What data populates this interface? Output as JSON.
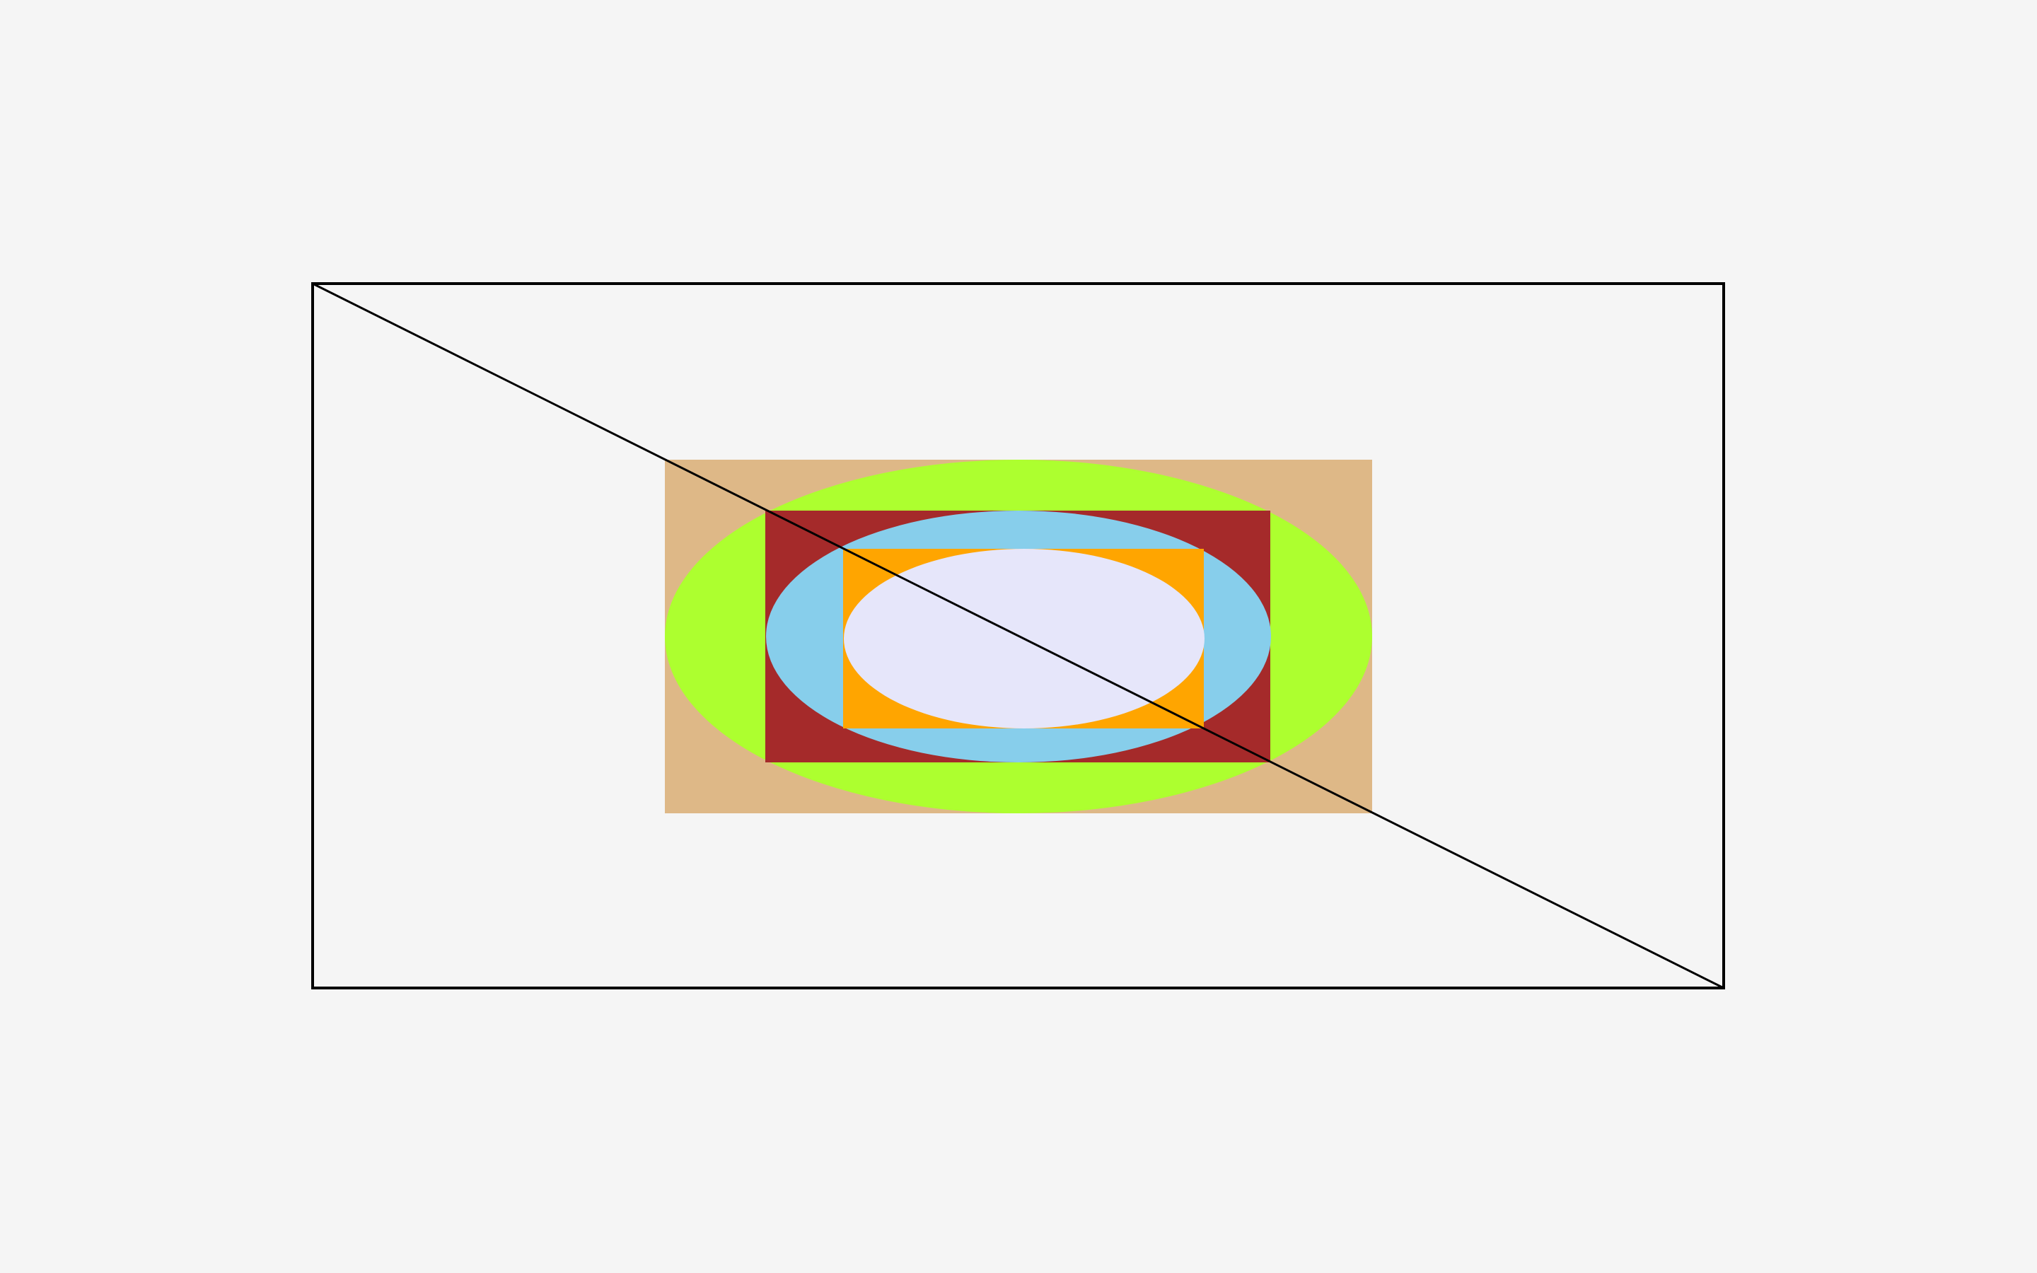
{
  "diagram": {
    "description_free": true,
    "colors": {
      "background": "#f5f5f5",
      "outline": "#000000",
      "outer_rect": "#deb887",
      "outer_ellipse": "#adff2f",
      "middle_rect": "#a52a2a",
      "middle_ellipse": "#87ceeb",
      "inner_rect": "#ffa500",
      "inner_ellipse": "#e6e6fa"
    },
    "shapes": [
      "frame-rectangle",
      "diagonal-line",
      "tan-rectangle",
      "green-ellipse",
      "brown-rectangle",
      "blue-ellipse",
      "orange-rectangle",
      "lavender-ellipse"
    ]
  }
}
